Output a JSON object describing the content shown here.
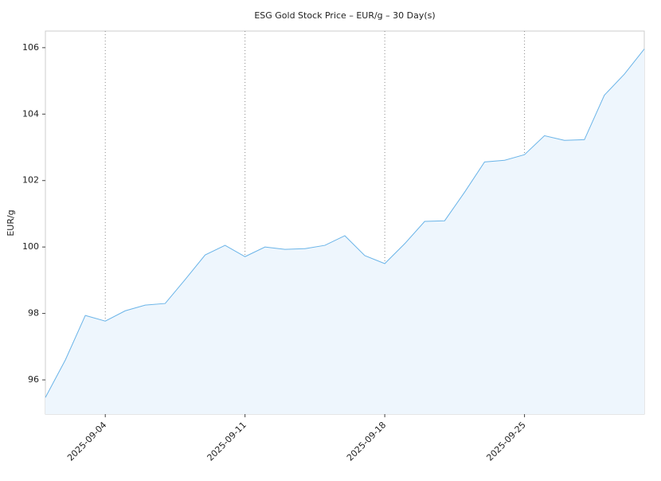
{
  "chart_data": {
    "type": "area",
    "title": "ESG Gold Stock Price – EUR/g – 30 Day(s)",
    "y_label": "EUR/g",
    "x": [
      "2025-09-01",
      "2025-09-02",
      "2025-09-03",
      "2025-09-04",
      "2025-09-05",
      "2025-09-06",
      "2025-09-07",
      "2025-09-08",
      "2025-09-09",
      "2025-09-10",
      "2025-09-11",
      "2025-09-12",
      "2025-09-13",
      "2025-09-14",
      "2025-09-15",
      "2025-09-16",
      "2025-09-17",
      "2025-09-18",
      "2025-09-19",
      "2025-09-20",
      "2025-09-21",
      "2025-09-22",
      "2025-09-23",
      "2025-09-24",
      "2025-09-25",
      "2025-09-26",
      "2025-09-27",
      "2025-09-28",
      "2025-09-29",
      "2025-09-30",
      "2025-10-01"
    ],
    "series": [
      {
        "name": "EUR/g",
        "color": "#6ab4e8",
        "fill": "#eef6fd",
        "values": [
          95.47,
          96.6,
          97.94,
          97.77,
          98.08,
          98.25,
          98.3,
          99.02,
          99.76,
          100.05,
          99.71,
          100.0,
          99.93,
          99.95,
          100.05,
          100.34,
          99.74,
          99.5,
          100.1,
          100.77,
          100.79,
          101.65,
          102.56,
          102.61,
          102.78,
          103.35,
          103.21,
          103.23,
          104.57,
          105.2,
          105.96
        ]
      }
    ],
    "xlim": [
      "2025-09-01",
      "2025-10-01"
    ],
    "xticks": [
      "2025-09-04",
      "2025-09-11",
      "2025-09-18",
      "2025-09-25"
    ],
    "ylim": [
      94.97,
      106.5
    ],
    "yticks": [
      96,
      98,
      100,
      102,
      104,
      106
    ],
    "x_grid": true
  }
}
